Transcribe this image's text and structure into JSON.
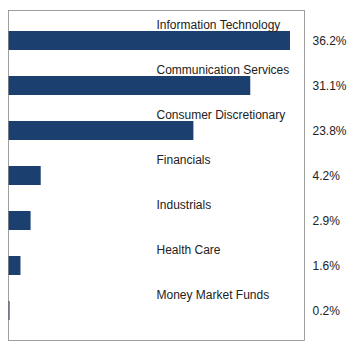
{
  "chart_data": {
    "type": "bar",
    "orientation": "horizontal",
    "categories": [
      "Money Market Funds",
      "Health Care",
      "Industrials",
      "Financials",
      "Consumer Discretionary",
      "Communication Services",
      "Information Technology"
    ],
    "values": [
      0.2,
      1.6,
      2.9,
      4.2,
      23.8,
      31.1,
      36.2
    ],
    "value_labels": [
      "0.2%",
      "1.6%",
      "2.9%",
      "4.2%",
      "23.8%",
      "31.1%",
      "36.2%"
    ],
    "data_labels": true,
    "color": "#1b3f6e",
    "xlim": [
      0,
      38
    ],
    "tick_labels": false,
    "grid": false
  }
}
